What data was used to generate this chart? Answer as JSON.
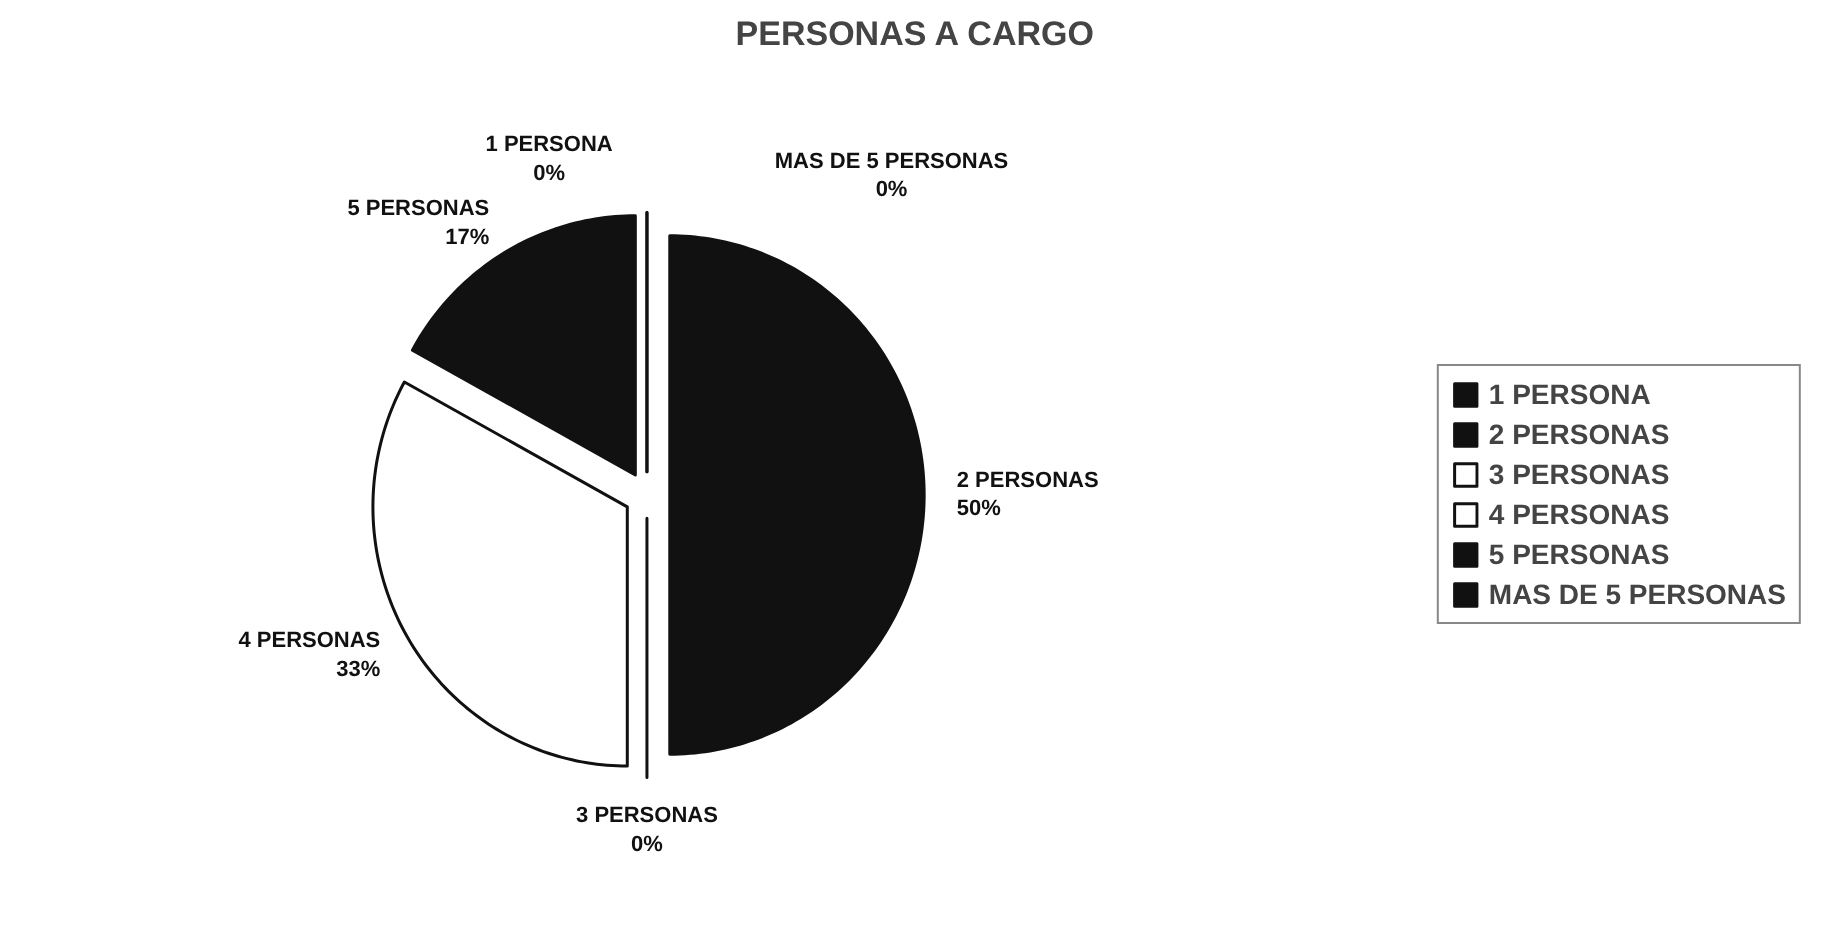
{
  "chart_data": {
    "type": "pie",
    "title": "PERSONAS A CARGO",
    "categories": [
      "1 PERSONA",
      "2 PERSONAS",
      "3 PERSONAS",
      "4 PERSONAS",
      "5 PERSONAS",
      "MAS DE 5 PERSONAS"
    ],
    "values": [
      0,
      50,
      0,
      33,
      17,
      0
    ],
    "value_labels": [
      "0%",
      "50%",
      "0%",
      "33%",
      "17%",
      "0%"
    ],
    "colors": [
      "#111111",
      "#111111",
      "#ffffff",
      "#ffffff",
      "#111111",
      "#111111"
    ],
    "legend": "right"
  }
}
